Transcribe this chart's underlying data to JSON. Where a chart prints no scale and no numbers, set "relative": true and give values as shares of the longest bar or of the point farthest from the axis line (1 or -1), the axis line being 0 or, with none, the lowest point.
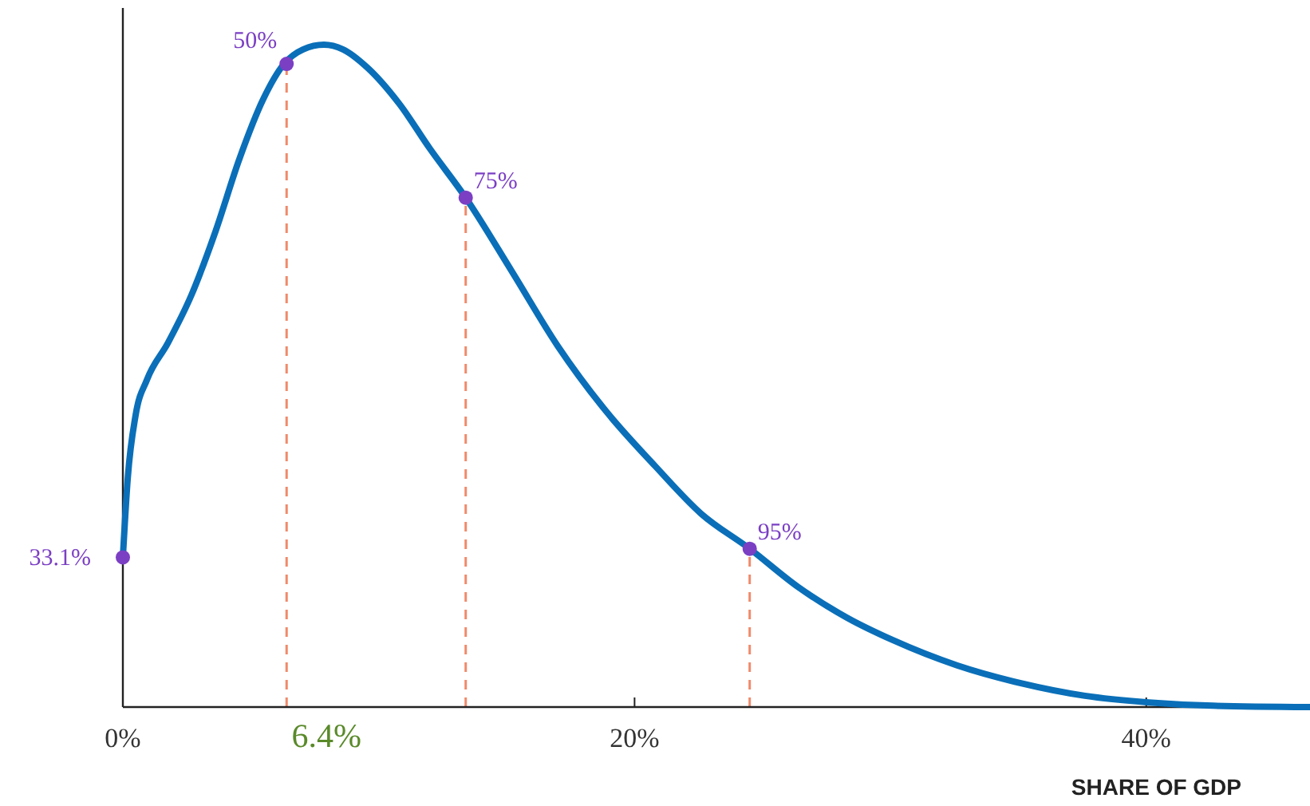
{
  "chart_data": {
    "type": "line",
    "relative": true,
    "xlabel": "SHARE OF GDP",
    "xlim": [
      0,
      46.4
    ],
    "xticks": [
      {
        "value": 0,
        "label": "0%"
      },
      {
        "value": 20,
        "label": "20%"
      },
      {
        "value": 40,
        "label": "40%"
      }
    ],
    "series": [
      {
        "color": "#0a6fb8",
        "x": [
          0,
          0.19,
          0.5,
          0.94,
          1.75,
          2.68,
          3.62,
          4.55,
          5.49,
          6.3,
          7.05,
          7.86,
          8.6,
          9.54,
          10.8,
          12.0,
          13.4,
          15.2,
          17.0,
          18.9,
          20.8,
          22.6,
          24.5,
          26.4,
          28.3,
          30.1,
          32.6,
          35.1,
          37.6,
          40.1,
          42.6,
          46.4
        ],
        "values": [
          0.226,
          0.345,
          0.441,
          0.494,
          0.549,
          0.622,
          0.718,
          0.827,
          0.918,
          0.971,
          0.993,
          1.0,
          0.993,
          0.966,
          0.911,
          0.843,
          0.769,
          0.658,
          0.545,
          0.446,
          0.364,
          0.292,
          0.239,
          0.181,
          0.135,
          0.101,
          0.063,
          0.036,
          0.017,
          0.007,
          0.002,
          0
        ]
      },
      {
        "type": "scatter",
        "color": "#7b3fc4",
        "marker": "circle",
        "x": [
          0,
          6.4,
          13.4,
          24.5
        ],
        "values": [
          0.226,
          0.971,
          0.769,
          0.239
        ]
      }
    ],
    "annotations": [
      {
        "text": "33.1%",
        "x": 0,
        "y": 0.226
      },
      {
        "text": "50%",
        "x": 6.4,
        "y": 0.971
      },
      {
        "text": "75%",
        "x": 13.4,
        "y": 0.769
      },
      {
        "text": "95%",
        "x": 24.5,
        "y": 0.239
      }
    ],
    "ref_lines": [
      {
        "axis": "x",
        "value": 6.4,
        "label": "6.4%",
        "color": "#f08a6a",
        "line_style": "dashed"
      },
      {
        "axis": "x",
        "value": 13.4,
        "label": null,
        "color": "#f08a6a",
        "line_style": "dashed"
      },
      {
        "axis": "x",
        "value": 24.5,
        "label": null,
        "color": "#f08a6a",
        "line_style": "dashed"
      }
    ],
    "grid": false
  }
}
